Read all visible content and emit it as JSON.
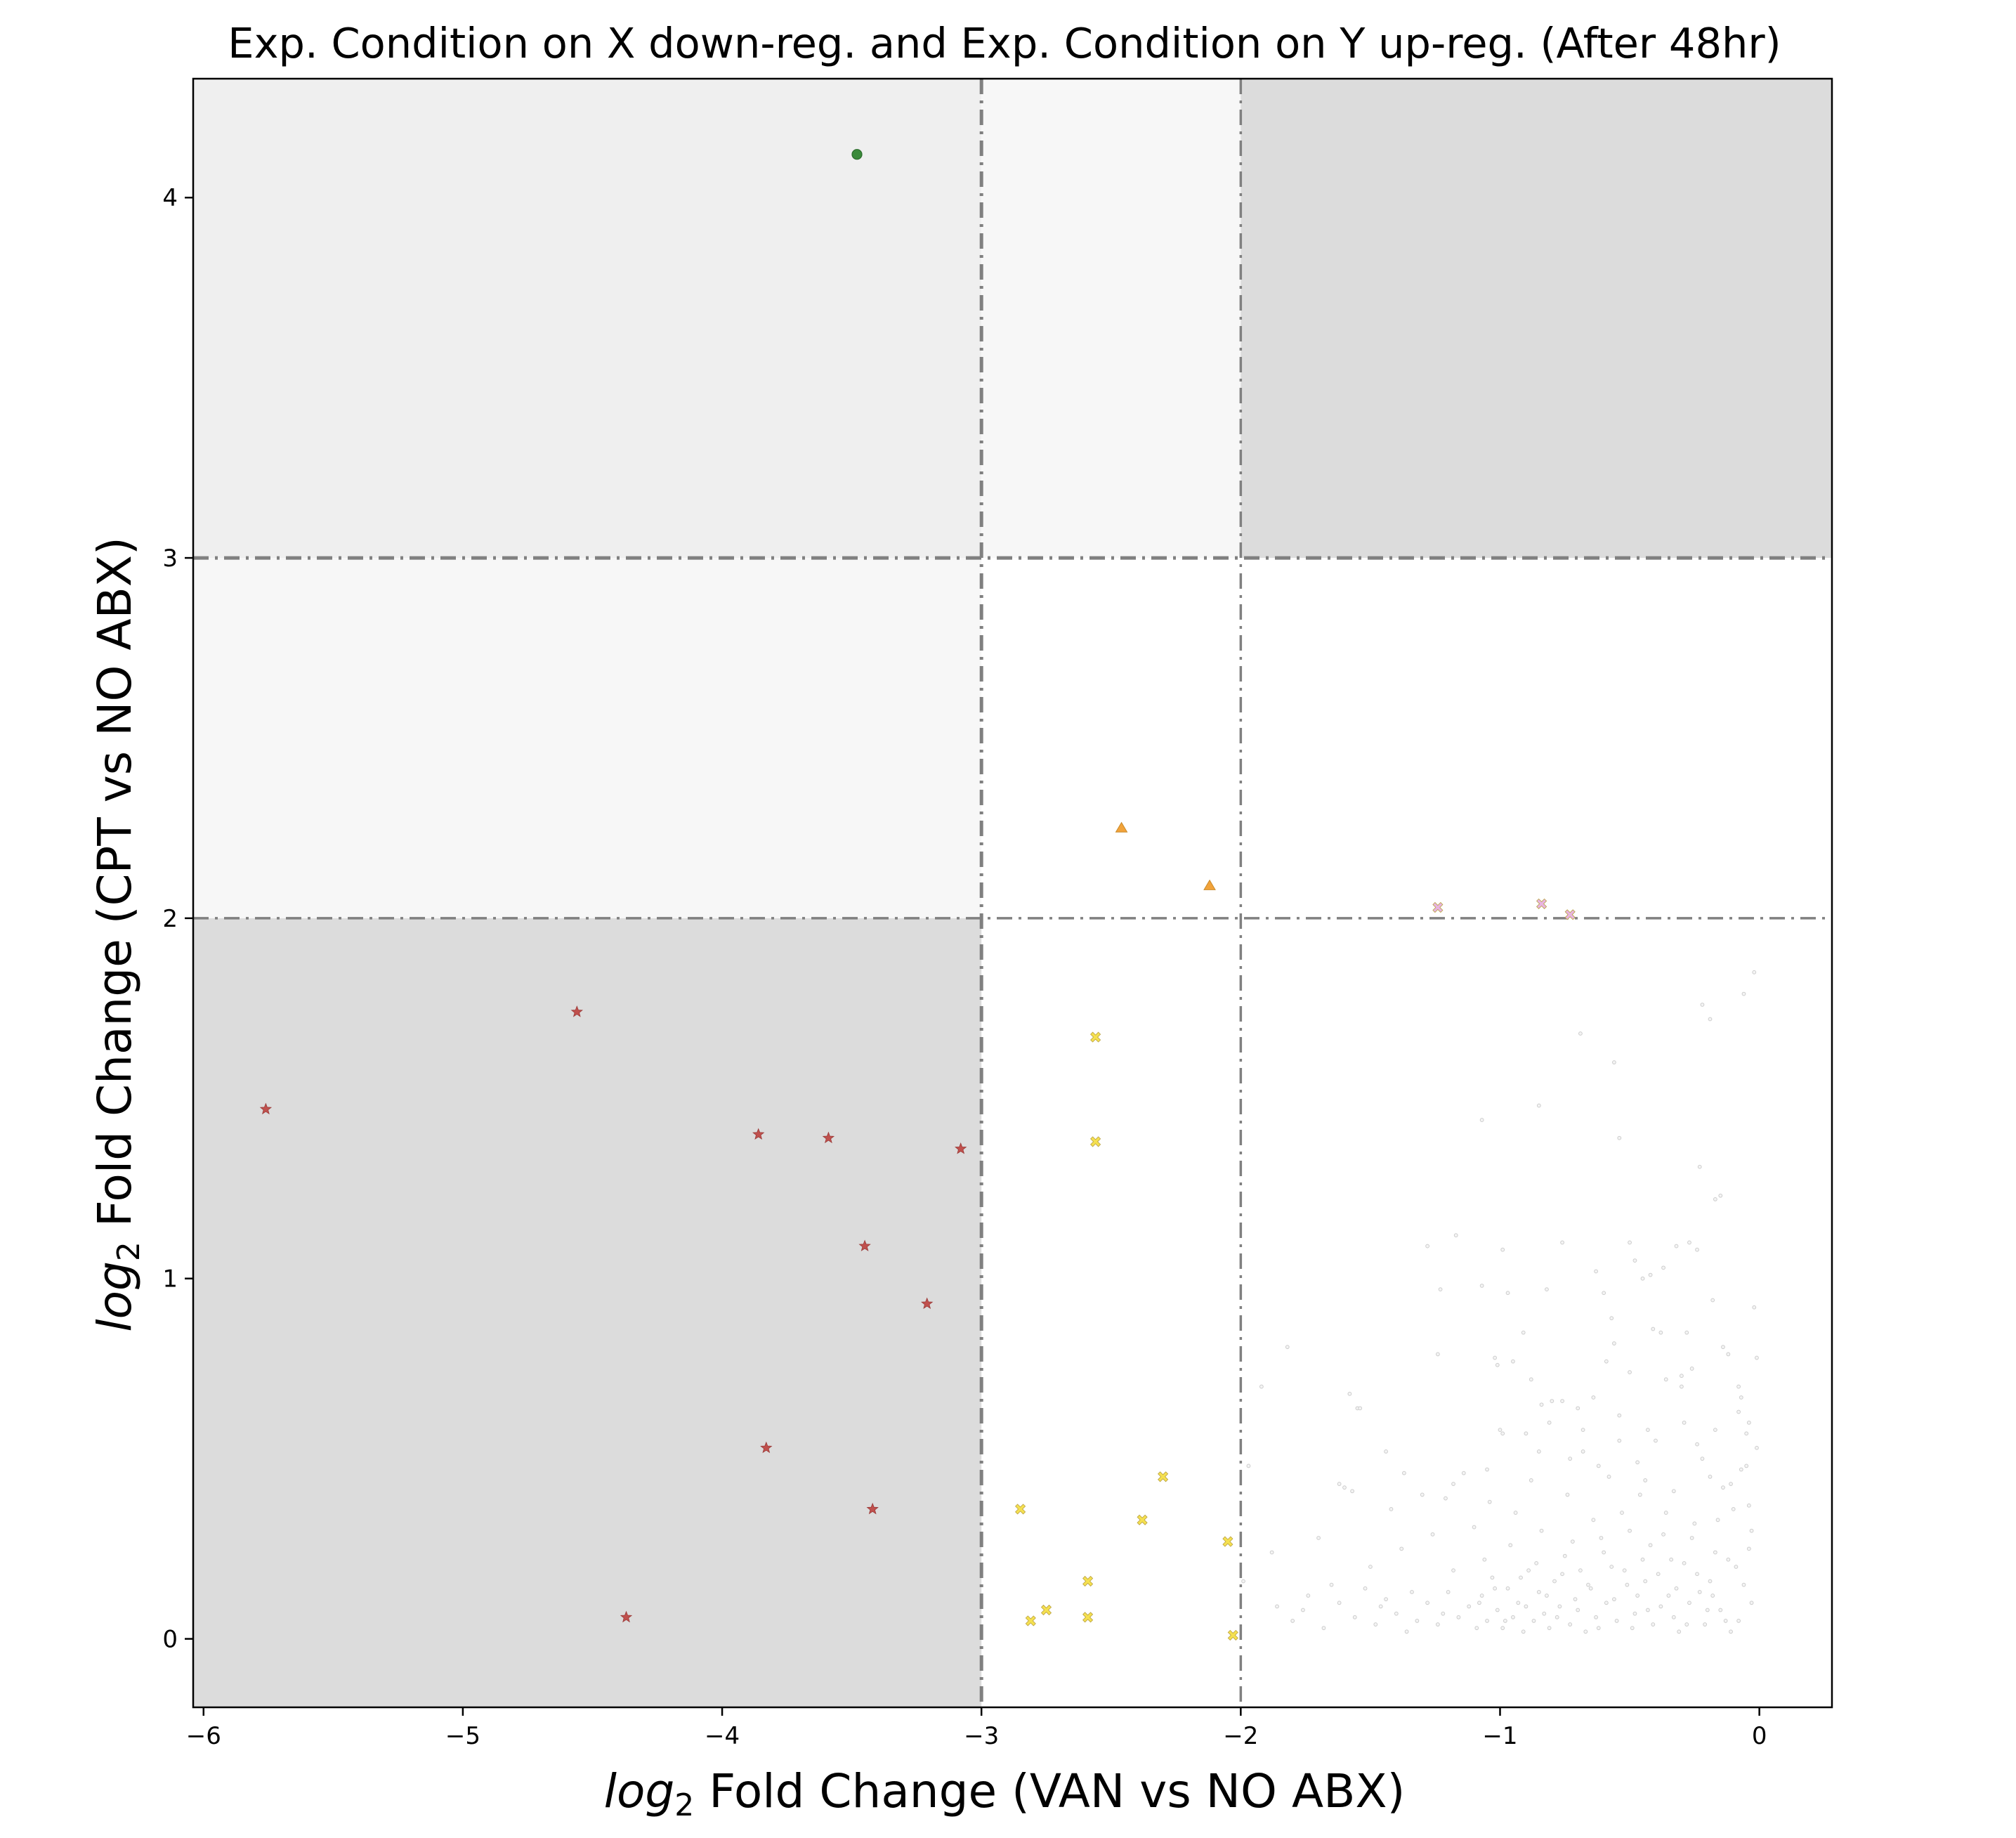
{
  "chart_data": {
    "type": "scatter",
    "title": "Exp. Condition on X down-reg. and Exp. Condition on Y up-reg. (After 48hr)",
    "xlabel": {
      "italic": "log",
      "sub": "2",
      "rest": " Fold Change (VAN vs NO ABX)"
    },
    "ylabel": {
      "italic": "log",
      "sub": "2",
      "rest": " Fold Change (CPT vs NO ABX)"
    },
    "xlim": [
      -6.04,
      0.28
    ],
    "ylim": [
      -0.19,
      4.33
    ],
    "x_ticks": [
      {
        "value": -6,
        "label": "−6"
      },
      {
        "value": -5,
        "label": "−5"
      },
      {
        "value": -4,
        "label": "−4"
      },
      {
        "value": -3,
        "label": "−3"
      },
      {
        "value": -2,
        "label": "−2"
      },
      {
        "value": -1,
        "label": "−1"
      },
      {
        "value": 0,
        "label": "0"
      }
    ],
    "y_ticks": [
      {
        "value": 0,
        "label": "0"
      },
      {
        "value": 1,
        "label": "1"
      },
      {
        "value": 2,
        "label": "2"
      },
      {
        "value": 3,
        "label": "3"
      },
      {
        "value": 4,
        "label": "4"
      }
    ],
    "regions": [
      {
        "x": [
          -6.04,
          -3
        ],
        "y": [
          3,
          4.33
        ],
        "color": "#efefef"
      },
      {
        "x": [
          -3,
          -2
        ],
        "y": [
          3,
          4.33
        ],
        "color": "#f7f7f7"
      },
      {
        "x": [
          -2,
          0.28
        ],
        "y": [
          3,
          4.33
        ],
        "color": "#dcdcdc"
      },
      {
        "x": [
          -6.04,
          -3
        ],
        "y": [
          2,
          3
        ],
        "color": "#f7f7f7"
      },
      {
        "x": [
          -6.04,
          -3
        ],
        "y": [
          -0.19,
          2
        ],
        "color": "#dcdcdc"
      }
    ],
    "threshold_lines": {
      "vertical": [
        -3,
        -2
      ],
      "horizontal": [
        2,
        3
      ],
      "style": "dash-dot",
      "color": "#808080"
    },
    "grid": false,
    "legend": "none",
    "series": [
      {
        "marker": "circle",
        "color": "#3a8a3a",
        "points": [
          [
            -3.48,
            4.12
          ]
        ]
      },
      {
        "marker": "star",
        "color": "#c0504d",
        "points": [
          [
            -5.76,
            1.47
          ],
          [
            -4.56,
            1.74
          ],
          [
            -3.86,
            1.4
          ],
          [
            -3.59,
            1.39
          ],
          [
            -3.08,
            1.36
          ],
          [
            -3.45,
            1.09
          ],
          [
            -3.21,
            0.93
          ],
          [
            -3.83,
            0.53
          ],
          [
            -3.42,
            0.36
          ],
          [
            -4.37,
            0.06
          ]
        ]
      },
      {
        "marker": "triangle",
        "color": "#f2a33a",
        "points": [
          [
            -2.46,
            2.25
          ],
          [
            -2.12,
            2.09
          ]
        ]
      },
      {
        "marker": "x-filled",
        "color": "#f5e050",
        "points": [
          [
            -2.56,
            1.67
          ],
          [
            -2.56,
            1.38
          ],
          [
            -2.3,
            0.45
          ],
          [
            -2.85,
            0.36
          ],
          [
            -2.38,
            0.33
          ],
          [
            -2.05,
            0.27
          ],
          [
            -2.59,
            0.16
          ],
          [
            -2.75,
            0.08
          ],
          [
            -2.81,
            0.05
          ],
          [
            -2.59,
            0.06
          ],
          [
            -2.03,
            0.01
          ]
        ]
      },
      {
        "marker": "x-filled",
        "color": "#e8b4e0",
        "points": [
          [
            -1.24,
            2.03
          ],
          [
            -0.84,
            2.04
          ],
          [
            -0.73,
            2.01
          ]
        ]
      },
      {
        "marker": "small-circle",
        "color": "#cccccc",
        "description_points": "background",
        "points": [
          [
            -0.02,
            1.85
          ],
          [
            -0.02,
            0.92
          ],
          [
            -0.01,
            0.78
          ],
          [
            -0.05,
            0.57
          ],
          [
            -0.03,
            0.3
          ],
          [
            -0.04,
            0.25
          ],
          [
            -0.06,
            0.15
          ],
          [
            -0.03,
            0.1
          ],
          [
            -0.08,
            0.05
          ],
          [
            -0.1,
            0.36
          ],
          [
            -0.12,
            0.22
          ],
          [
            -0.14,
            0.42
          ],
          [
            -0.16,
            0.33
          ],
          [
            -0.18,
            0.12
          ],
          [
            -0.2,
            0.08
          ],
          [
            -0.22,
            0.5
          ],
          [
            -0.24,
            0.18
          ],
          [
            -0.26,
            0.28
          ],
          [
            -0.28,
            0.04
          ],
          [
            -0.3,
            0.7
          ],
          [
            -0.32,
            0.14
          ],
          [
            -0.34,
            0.22
          ],
          [
            -0.36,
            0.35
          ],
          [
            -0.38,
            0.09
          ],
          [
            -0.4,
            0.55
          ],
          [
            -0.42,
            0.26
          ],
          [
            -0.44,
            0.16
          ],
          [
            -0.46,
            0.4
          ],
          [
            -0.48,
            0.07
          ],
          [
            -0.5,
            0.3
          ],
          [
            -0.52,
            0.19
          ],
          [
            -0.54,
            0.62
          ],
          [
            -0.56,
            0.11
          ],
          [
            -0.58,
            0.45
          ],
          [
            -0.6,
            0.24
          ],
          [
            -0.62,
            0.03
          ],
          [
            -0.64,
            0.33
          ],
          [
            -0.66,
            0.15
          ],
          [
            -0.68,
            0.52
          ],
          [
            -0.7,
            0.08
          ],
          [
            -0.72,
            0.27
          ],
          [
            -0.74,
            0.4
          ],
          [
            -0.76,
            0.18
          ],
          [
            -0.78,
            0.06
          ],
          [
            -0.8,
            0.66
          ],
          [
            -0.82,
            0.12
          ],
          [
            -0.84,
            0.3
          ],
          [
            -0.86,
            0.21
          ],
          [
            -0.88,
            0.44
          ],
          [
            -0.9,
            0.09
          ],
          [
            -0.92,
            0.17
          ],
          [
            -0.94,
            0.35
          ],
          [
            -0.96,
            0.26
          ],
          [
            -0.98,
            0.05
          ],
          [
            -1.0,
            0.58
          ],
          [
            -1.02,
            0.14
          ],
          [
            -1.04,
            0.38
          ],
          [
            -1.06,
            0.22
          ],
          [
            -1.08,
            0.1
          ],
          [
            -1.1,
            0.31
          ],
          [
            -1.14,
            0.46
          ],
          [
            -1.18,
            0.19
          ],
          [
            -1.22,
            0.07
          ],
          [
            -1.26,
            0.29
          ],
          [
            -1.3,
            0.4
          ],
          [
            -1.34,
            0.13
          ],
          [
            -1.38,
            0.25
          ],
          [
            -1.42,
            0.36
          ],
          [
            -1.46,
            0.09
          ],
          [
            -1.5,
            0.2
          ],
          [
            -1.55,
            0.64
          ],
          [
            -1.6,
            0.42
          ],
          [
            -1.65,
            0.15
          ],
          [
            -1.7,
            0.28
          ],
          [
            -1.76,
            0.08
          ],
          [
            -1.82,
            0.81
          ],
          [
            -1.88,
            0.24
          ],
          [
            -1.92,
            0.7
          ],
          [
            -1.97,
            0.48
          ],
          [
            -1.99,
            0.16
          ],
          [
            -0.04,
            0.37
          ],
          [
            -0.07,
            0.47
          ],
          [
            -0.09,
            0.2
          ],
          [
            -0.11,
            0.02
          ],
          [
            -0.13,
            0.05
          ],
          [
            -0.15,
            0.08
          ],
          [
            -0.17,
            0.24
          ],
          [
            -0.19,
            0.16
          ],
          [
            -0.21,
            0.04
          ],
          [
            -0.23,
            0.13
          ],
          [
            -0.25,
            0.32
          ],
          [
            -0.27,
            0.1
          ],
          [
            -0.29,
            0.21
          ],
          [
            -0.31,
            0.02
          ],
          [
            -0.33,
            0.06
          ],
          [
            -0.35,
            0.12
          ],
          [
            -0.37,
            0.29
          ],
          [
            -0.39,
            0.18
          ],
          [
            -0.41,
            0.04
          ],
          [
            -0.43,
            0.08
          ],
          [
            -0.45,
            0.22
          ],
          [
            -0.47,
            0.12
          ],
          [
            -0.49,
            0.03
          ],
          [
            -0.51,
            0.15
          ],
          [
            -0.53,
            0.35
          ],
          [
            -0.55,
            0.05
          ],
          [
            -0.57,
            0.2
          ],
          [
            -0.59,
            0.1
          ],
          [
            -0.61,
            0.28
          ],
          [
            -0.63,
            0.06
          ],
          [
            -0.65,
            0.14
          ],
          [
            -0.67,
            0.02
          ],
          [
            -0.69,
            0.19
          ],
          [
            -0.71,
            0.11
          ],
          [
            -0.73,
            0.04
          ],
          [
            -0.75,
            0.23
          ],
          [
            -0.77,
            0.09
          ],
          [
            -0.79,
            0.16
          ],
          [
            -0.81,
            0.03
          ],
          [
            -0.83,
            0.07
          ],
          [
            -0.85,
            0.13
          ],
          [
            -0.87,
            0.05
          ],
          [
            -0.89,
            0.19
          ],
          [
            -0.91,
            0.02
          ],
          [
            -0.93,
            0.1
          ],
          [
            -0.95,
            0.06
          ],
          [
            -0.97,
            0.14
          ],
          [
            -0.99,
            0.03
          ],
          [
            -1.01,
            0.08
          ],
          [
            -1.03,
            0.17
          ],
          [
            -1.05,
            0.05
          ],
          [
            -1.07,
            0.12
          ],
          [
            -1.09,
            0.03
          ],
          [
            -1.12,
            0.09
          ],
          [
            -1.16,
            0.06
          ],
          [
            -1.2,
            0.13
          ],
          [
            -1.24,
            0.04
          ],
          [
            -1.28,
            0.1
          ],
          [
            -1.32,
            0.05
          ],
          [
            -1.36,
            0.02
          ],
          [
            -1.4,
            0.07
          ],
          [
            -1.44,
            0.11
          ],
          [
            -1.48,
            0.04
          ],
          [
            -1.52,
            0.14
          ],
          [
            -1.56,
            0.06
          ],
          [
            -1.62,
            0.1
          ],
          [
            -1.68,
            0.03
          ],
          [
            -1.74,
            0.12
          ],
          [
            -1.8,
            0.05
          ],
          [
            -1.86,
            0.09
          ],
          [
            -0.06,
            1.79
          ],
          [
            -0.22,
            1.76
          ],
          [
            -0.19,
            1.72
          ],
          [
            -0.69,
            1.68
          ],
          [
            -0.56,
            1.6
          ],
          [
            -1.07,
            1.44
          ],
          [
            -0.85,
            1.48
          ],
          [
            -0.54,
            1.39
          ],
          [
            -0.23,
            1.31
          ],
          [
            -0.17,
            1.22
          ],
          [
            -0.15,
            1.23
          ],
          [
            -1.17,
            1.12
          ],
          [
            -1.28,
            1.09
          ],
          [
            -0.99,
            1.08
          ],
          [
            -0.76,
            1.1
          ],
          [
            -0.5,
            1.1
          ],
          [
            -0.32,
            1.09
          ],
          [
            -0.27,
            1.1
          ],
          [
            -0.24,
            1.08
          ],
          [
            -0.48,
            1.05
          ],
          [
            -0.45,
            1.0
          ],
          [
            -0.42,
            1.01
          ],
          [
            -0.37,
            1.03
          ],
          [
            -0.63,
            1.02
          ],
          [
            -1.23,
            0.97
          ],
          [
            -1.07,
            0.98
          ],
          [
            -0.97,
            0.96
          ],
          [
            -0.82,
            0.97
          ],
          [
            -0.6,
            0.96
          ],
          [
            -0.18,
            0.94
          ],
          [
            -0.57,
            0.89
          ],
          [
            -0.41,
            0.86
          ],
          [
            -0.38,
            0.85
          ],
          [
            -0.28,
            0.85
          ],
          [
            -0.56,
            0.82
          ],
          [
            -0.91,
            0.85
          ],
          [
            -1.24,
            0.79
          ],
          [
            -1.02,
            0.78
          ],
          [
            -0.95,
            0.77
          ],
          [
            -1.01,
            0.76
          ],
          [
            -0.88,
            0.72
          ],
          [
            -0.26,
            0.75
          ],
          [
            -0.3,
            0.73
          ],
          [
            -0.36,
            0.72
          ],
          [
            -0.5,
            0.74
          ],
          [
            -0.59,
            0.77
          ],
          [
            -0.12,
            0.79
          ],
          [
            -0.14,
            0.81
          ],
          [
            -0.08,
            0.7
          ],
          [
            -0.07,
            0.67
          ],
          [
            -0.84,
            0.65
          ],
          [
            -0.76,
            0.66
          ],
          [
            -0.64,
            0.67
          ],
          [
            -0.7,
            0.64
          ],
          [
            -1.58,
            0.68
          ],
          [
            -1.54,
            0.64
          ],
          [
            -1.44,
            0.52
          ],
          [
            -1.37,
            0.46
          ],
          [
            -1.18,
            0.43
          ],
          [
            -1.21,
            0.39
          ],
          [
            -1.62,
            0.43
          ],
          [
            -1.57,
            0.41
          ],
          [
            -1.05,
            0.47
          ],
          [
            -0.99,
            0.57
          ],
          [
            -0.85,
            0.52
          ],
          [
            -0.73,
            0.5
          ],
          [
            -0.62,
            0.48
          ],
          [
            -0.47,
            0.49
          ],
          [
            -0.44,
            0.44
          ],
          [
            -0.33,
            0.41
          ],
          [
            -0.19,
            0.45
          ],
          [
            -0.11,
            0.43
          ],
          [
            -0.05,
            0.48
          ],
          [
            -0.01,
            0.53
          ],
          [
            -0.04,
            0.6
          ],
          [
            -0.08,
            0.63
          ],
          [
            -0.24,
            0.54
          ],
          [
            -0.29,
            0.6
          ],
          [
            -0.43,
            0.58
          ],
          [
            -0.17,
            0.58
          ],
          [
            -0.54,
            0.55
          ],
          [
            -0.68,
            0.58
          ],
          [
            -0.81,
            0.6
          ],
          [
            -0.9,
            0.57
          ]
        ]
      }
    ]
  }
}
